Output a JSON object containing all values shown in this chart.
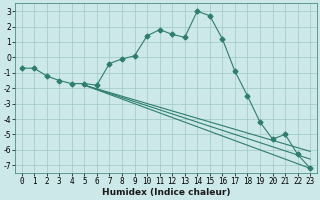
{
  "title": "",
  "xlabel": "Humidex (Indice chaleur)",
  "bg_color": "#cce8e8",
  "grid_color": "#a0c8c8",
  "line_color": "#2e7d6e",
  "xlim": [
    -0.5,
    23.5
  ],
  "ylim": [
    -7.5,
    3.5
  ],
  "xticks": [
    0,
    1,
    2,
    3,
    4,
    5,
    6,
    7,
    8,
    9,
    10,
    11,
    12,
    13,
    14,
    15,
    16,
    17,
    18,
    19,
    20,
    21,
    22,
    23
  ],
  "yticks": [
    -7,
    -6,
    -5,
    -4,
    -3,
    -2,
    -1,
    0,
    1,
    2,
    3
  ],
  "line1_x": [
    0,
    1,
    2,
    3,
    4,
    5,
    6,
    7,
    8,
    9,
    10,
    11,
    12,
    13,
    14,
    15,
    16,
    17,
    18,
    19,
    20,
    21,
    22,
    23
  ],
  "line1_y": [
    -0.7,
    -0.7,
    -1.2,
    -1.5,
    -1.7,
    -1.7,
    -1.8,
    -0.4,
    -0.1,
    0.1,
    1.4,
    1.8,
    1.5,
    1.3,
    3.0,
    2.7,
    1.2,
    -0.9,
    -2.5,
    -4.2,
    -5.3,
    -5.0,
    -6.3,
    -7.2
  ],
  "line2_x": [
    5,
    23
  ],
  "line2_y": [
    -1.8,
    -7.2
  ],
  "line3_x": [
    5,
    23
  ],
  "line3_y": [
    -1.8,
    -6.6
  ],
  "line4_x": [
    5,
    23
  ],
  "line4_y": [
    -1.8,
    -6.1
  ],
  "tick_fontsize": 5.5,
  "xlabel_fontsize": 6.5
}
